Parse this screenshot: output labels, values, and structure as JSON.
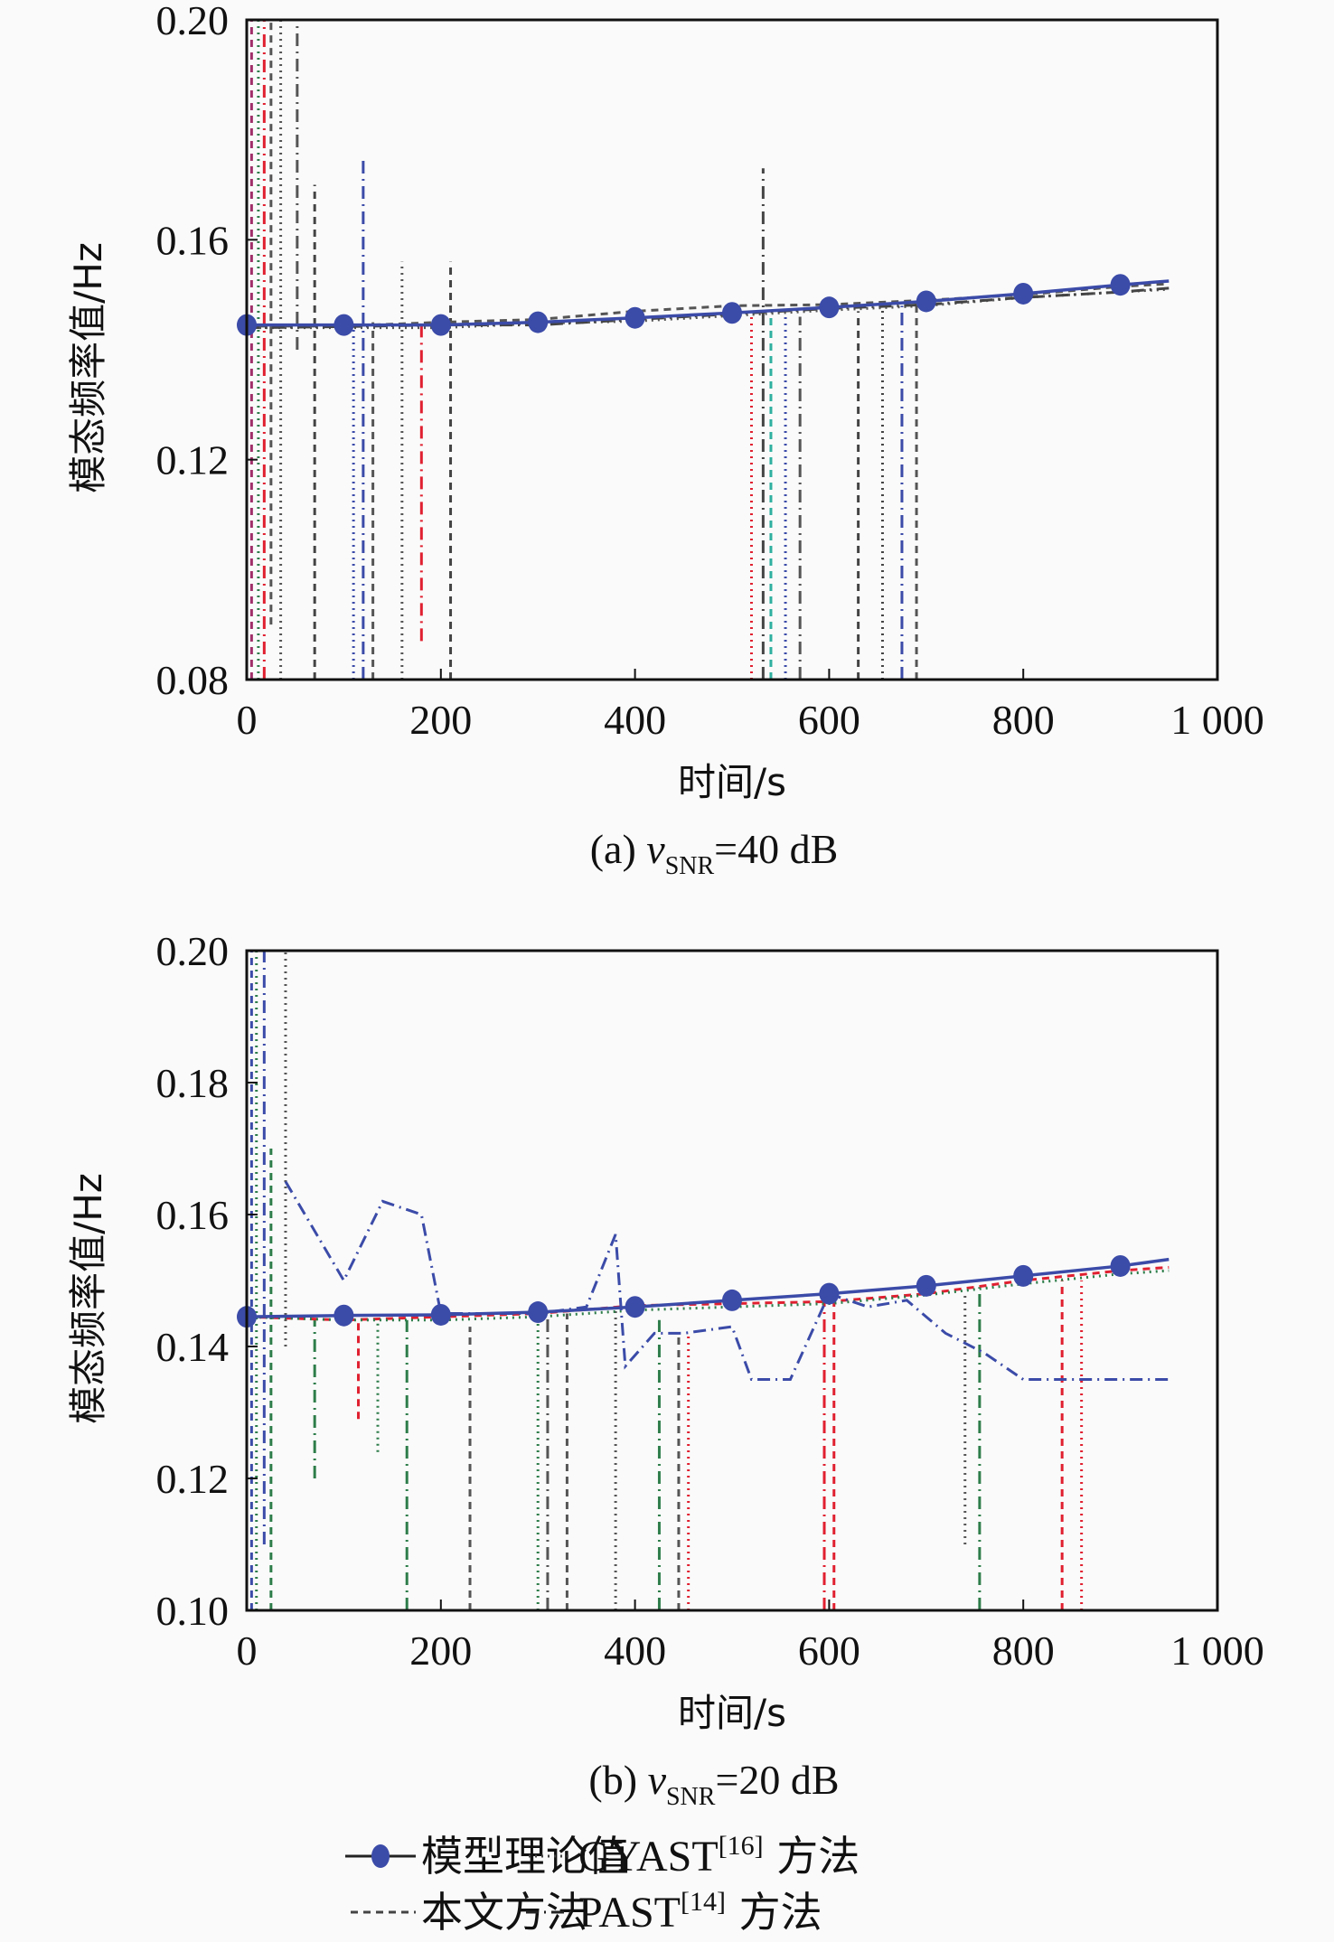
{
  "chart_data": [
    {
      "id": "a",
      "type": "line",
      "caption": {
        "prefix": "(a) ",
        "var": "v",
        "sub": "SNR",
        "suffix": "=40 dB"
      },
      "xlabel": "时间/s",
      "ylabel": "模态频率值/Hz",
      "xlim": [
        0,
        1000
      ],
      "ylim": [
        0.08,
        0.2
      ],
      "xticks": [
        0,
        200,
        400,
        600,
        800,
        1000
      ],
      "xtick_labels": [
        "0",
        "200",
        "400",
        "600",
        "800",
        "1 000"
      ],
      "yticks": [
        0.08,
        0.12,
        0.16,
        0.2
      ],
      "ytick_labels": [
        "0.08",
        "0.12",
        "0.16",
        "0.20"
      ],
      "grid": false,
      "series": [
        {
          "name": "模型理论值",
          "style": "solid-marker",
          "color": "#3b4ba8",
          "x": [
            0,
            100,
            200,
            300,
            400,
            500,
            600,
            700,
            800,
            900,
            950
          ],
          "y": [
            0.1445,
            0.1445,
            0.1445,
            0.145,
            0.1458,
            0.1467,
            0.1477,
            0.1488,
            0.1502,
            0.1518,
            0.1525
          ]
        },
        {
          "name": "本文方法",
          "style": "dashed",
          "color": "#555555",
          "x": [
            0,
            100,
            200,
            300,
            400,
            500,
            600,
            700,
            800,
            900,
            950
          ],
          "y": [
            0.1443,
            0.1443,
            0.145,
            0.1455,
            0.147,
            0.148,
            0.1482,
            0.149,
            0.15,
            0.1515,
            0.152
          ]
        },
        {
          "name": "GYAST[16]方法",
          "style": "dotted",
          "color": "#555555",
          "x": [
            0,
            100,
            200,
            300,
            400,
            500,
            600,
            700,
            800,
            900,
            950
          ],
          "y": [
            0.144,
            0.144,
            0.144,
            0.1448,
            0.1452,
            0.1462,
            0.1472,
            0.148,
            0.1495,
            0.1505,
            0.151
          ]
        },
        {
          "name": "PAST[14]方法",
          "style": "dashdot",
          "color": "#444444",
          "x": [
            0,
            100,
            200,
            300,
            400,
            500,
            600,
            700,
            800,
            900,
            950
          ],
          "y": [
            0.144,
            0.1442,
            0.1445,
            0.1445,
            0.1455,
            0.1465,
            0.1475,
            0.1482,
            0.1495,
            0.1505,
            0.1512
          ]
        }
      ],
      "spikes": [
        {
          "x": 5,
          "y0": 0.08,
          "y1": 0.2,
          "color": "#a0306a"
        },
        {
          "x": 12,
          "y0": 0.08,
          "y1": 0.2,
          "color": "#2e7d4a"
        },
        {
          "x": 18,
          "y0": 0.08,
          "y1": 0.2,
          "color": "#e02030"
        },
        {
          "x": 25,
          "y0": 0.09,
          "y1": 0.2,
          "color": "#555555"
        },
        {
          "x": 35,
          "y0": 0.08,
          "y1": 0.2,
          "color": "#555555"
        },
        {
          "x": 52,
          "y0": 0.14,
          "y1": 0.2,
          "color": "#555555"
        },
        {
          "x": 70,
          "y0": 0.08,
          "y1": 0.17,
          "color": "#444444"
        },
        {
          "x": 110,
          "y0": 0.08,
          "y1": 0.145,
          "color": "#3b4ba8"
        },
        {
          "x": 120,
          "y0": 0.08,
          "y1": 0.175,
          "color": "#3b4ba8"
        },
        {
          "x": 130,
          "y0": 0.08,
          "y1": 0.145,
          "color": "#555555"
        },
        {
          "x": 160,
          "y0": 0.08,
          "y1": 0.156,
          "color": "#555555"
        },
        {
          "x": 180,
          "y0": 0.087,
          "y1": 0.145,
          "color": "#e02030"
        },
        {
          "x": 210,
          "y0": 0.08,
          "y1": 0.156,
          "color": "#444444"
        },
        {
          "x": 520,
          "y0": 0.08,
          "y1": 0.147,
          "color": "#e02030"
        },
        {
          "x": 532,
          "y0": 0.08,
          "y1": 0.173,
          "color": "#444444"
        },
        {
          "x": 540,
          "y0": 0.08,
          "y1": 0.146,
          "color": "#2fb0a0"
        },
        {
          "x": 555,
          "y0": 0.08,
          "y1": 0.146,
          "color": "#3b4ba8"
        },
        {
          "x": 570,
          "y0": 0.08,
          "y1": 0.146,
          "color": "#555555"
        },
        {
          "x": 630,
          "y0": 0.08,
          "y1": 0.147,
          "color": "#444444"
        },
        {
          "x": 655,
          "y0": 0.08,
          "y1": 0.148,
          "color": "#444444"
        },
        {
          "x": 675,
          "y0": 0.08,
          "y1": 0.148,
          "color": "#3b4ba8"
        },
        {
          "x": 690,
          "y0": 0.08,
          "y1": 0.148,
          "color": "#555555"
        }
      ]
    },
    {
      "id": "b",
      "type": "line",
      "caption": {
        "prefix": "(b) ",
        "var": "v",
        "sub": "SNR",
        "suffix": "=20 dB"
      },
      "xlabel": "时间/s",
      "ylabel": "模态频率值/Hz",
      "xlim": [
        0,
        1000
      ],
      "ylim": [
        0.1,
        0.2
      ],
      "xticks": [
        0,
        200,
        400,
        600,
        800,
        1000
      ],
      "xtick_labels": [
        "0",
        "200",
        "400",
        "600",
        "800",
        "1 000"
      ],
      "yticks": [
        0.1,
        0.12,
        0.14,
        0.16,
        0.18,
        0.2
      ],
      "ytick_labels": [
        "0.10",
        "0.12",
        "0.14",
        "0.16",
        "0.18",
        "0.20"
      ],
      "grid": false,
      "series": [
        {
          "name": "模型理论值",
          "style": "solid-marker",
          "color": "#3b4ba8",
          "x": [
            0,
            100,
            200,
            300,
            400,
            500,
            600,
            700,
            800,
            900,
            950
          ],
          "y": [
            0.1445,
            0.1447,
            0.1448,
            0.1452,
            0.146,
            0.147,
            0.148,
            0.1492,
            0.1507,
            0.1522,
            0.1532
          ]
        },
        {
          "name": "本文方法",
          "style": "dashed",
          "color": "#e02030",
          "x": [
            0,
            100,
            200,
            300,
            400,
            500,
            600,
            700,
            800,
            900,
            950
          ],
          "y": [
            0.1445,
            0.144,
            0.1445,
            0.145,
            0.1462,
            0.1465,
            0.1468,
            0.148,
            0.15,
            0.1515,
            0.152
          ]
        },
        {
          "name": "GYAST[16]方法",
          "style": "dotted",
          "color": "#2e7d4a",
          "x": [
            0,
            100,
            200,
            300,
            400,
            500,
            600,
            700,
            800,
            900,
            950
          ],
          "y": [
            0.1445,
            0.144,
            0.144,
            0.1445,
            0.1455,
            0.146,
            0.1465,
            0.1478,
            0.1495,
            0.151,
            0.1515
          ]
        },
        {
          "name": "PAST[14]方法",
          "style": "dashdot",
          "color": "#3b4ba8",
          "x": [
            40,
            60,
            100,
            140,
            180,
            200,
            300,
            350,
            380,
            390,
            420,
            450,
            500,
            520,
            560,
            600,
            640,
            680,
            720,
            760,
            800,
            850,
            900,
            950
          ],
          "y": [
            0.165,
            0.16,
            0.15,
            0.162,
            0.16,
            0.145,
            0.145,
            0.146,
            0.157,
            0.137,
            0.142,
            0.142,
            0.143,
            0.135,
            0.135,
            0.148,
            0.146,
            0.147,
            0.142,
            0.139,
            0.135,
            0.135,
            0.135,
            0.135
          ]
        }
      ],
      "spikes": [
        {
          "x": 5,
          "y0": 0.1,
          "y1": 0.2,
          "color": "#3b4ba8"
        },
        {
          "x": 10,
          "y0": 0.1,
          "y1": 0.2,
          "color": "#2e7d4a"
        },
        {
          "x": 18,
          "y0": 0.11,
          "y1": 0.2,
          "color": "#3b4ba8"
        },
        {
          "x": 25,
          "y0": 0.1,
          "y1": 0.17,
          "color": "#2e7d4a"
        },
        {
          "x": 40,
          "y0": 0.14,
          "y1": 0.2,
          "color": "#555555"
        },
        {
          "x": 70,
          "y0": 0.12,
          "y1": 0.144,
          "color": "#2e7d4a"
        },
        {
          "x": 115,
          "y0": 0.129,
          "y1": 0.144,
          "color": "#e02030"
        },
        {
          "x": 135,
          "y0": 0.124,
          "y1": 0.144,
          "color": "#2e7d4a"
        },
        {
          "x": 165,
          "y0": 0.1,
          "y1": 0.144,
          "color": "#2e7d4a"
        },
        {
          "x": 230,
          "y0": 0.1,
          "y1": 0.143,
          "color": "#555555"
        },
        {
          "x": 300,
          "y0": 0.1,
          "y1": 0.145,
          "color": "#2e7d4a"
        },
        {
          "x": 310,
          "y0": 0.1,
          "y1": 0.145,
          "color": "#555555"
        },
        {
          "x": 330,
          "y0": 0.1,
          "y1": 0.145,
          "color": "#555555"
        },
        {
          "x": 380,
          "y0": 0.1,
          "y1": 0.146,
          "color": "#555555"
        },
        {
          "x": 425,
          "y0": 0.1,
          "y1": 0.144,
          "color": "#2e7d4a"
        },
        {
          "x": 445,
          "y0": 0.1,
          "y1": 0.142,
          "color": "#555555"
        },
        {
          "x": 455,
          "y0": 0.1,
          "y1": 0.142,
          "color": "#e02030"
        },
        {
          "x": 595,
          "y0": 0.1,
          "y1": 0.147,
          "color": "#e02030"
        },
        {
          "x": 605,
          "y0": 0.1,
          "y1": 0.147,
          "color": "#e02030"
        },
        {
          "x": 740,
          "y0": 0.11,
          "y1": 0.148,
          "color": "#555555"
        },
        {
          "x": 755,
          "y0": 0.1,
          "y1": 0.149,
          "color": "#2e7d4a"
        },
        {
          "x": 840,
          "y0": 0.1,
          "y1": 0.15,
          "color": "#e02030"
        },
        {
          "x": 860,
          "y0": 0.1,
          "y1": 0.15,
          "color": "#e02030"
        }
      ]
    }
  ],
  "legend": {
    "items": [
      {
        "label": "模型理论值",
        "style": "solid-marker"
      },
      {
        "label_main": "GYAST",
        "label_sup": "[16]",
        "label_cn": " 方法",
        "style": "dotted"
      },
      {
        "label": "本文方法",
        "style": "dashed"
      },
      {
        "label_main": "PAST",
        "label_sup": "[14]",
        "label_cn": " 方法",
        "style": "dashdot"
      }
    ]
  }
}
